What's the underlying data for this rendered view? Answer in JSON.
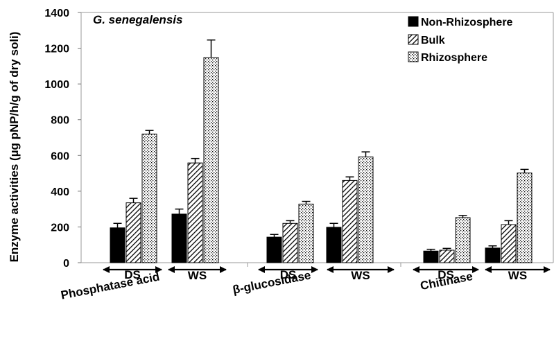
{
  "chart_data": {
    "type": "bar",
    "title": "G. senegalensis",
    "ylabel": "Enzyme activities (µg pNP/h/g of dry soli)",
    "ylim": [
      0,
      1400
    ],
    "yticks": [
      0,
      200,
      400,
      600,
      800,
      1000,
      1200,
      1400
    ],
    "legend_position": "top-right",
    "series": [
      {
        "name": "Non-Rhizosphere",
        "pattern": "solid"
      },
      {
        "name": "Bulk",
        "pattern": "hatched"
      },
      {
        "name": "Rhizosphere",
        "pattern": "dotted"
      }
    ],
    "groups": [
      {
        "label": "Phosphatase acid",
        "seasons": [
          {
            "label": "DS",
            "values": [
              195,
              335,
              720
            ],
            "errors": [
              25,
              25,
              20
            ]
          },
          {
            "label": "WS",
            "values": [
              272,
              558,
              1148
            ],
            "errors": [
              28,
              25,
              98
            ]
          }
        ]
      },
      {
        "label": "β-glucosidase",
        "seasons": [
          {
            "label": "DS",
            "values": [
              143,
              220,
              328
            ],
            "errors": [
              15,
              15,
              15
            ]
          },
          {
            "label": "WS",
            "values": [
              198,
              460,
              592
            ],
            "errors": [
              22,
              20,
              28
            ]
          }
        ]
      },
      {
        "label": "Chitinase",
        "seasons": [
          {
            "label": "DS",
            "values": [
              65,
              70,
              252
            ],
            "errors": [
              10,
              10,
              12
            ]
          },
          {
            "label": "WS",
            "values": [
              82,
              213,
              502
            ],
            "errors": [
              12,
              22,
              20
            ]
          }
        ]
      }
    ]
  }
}
